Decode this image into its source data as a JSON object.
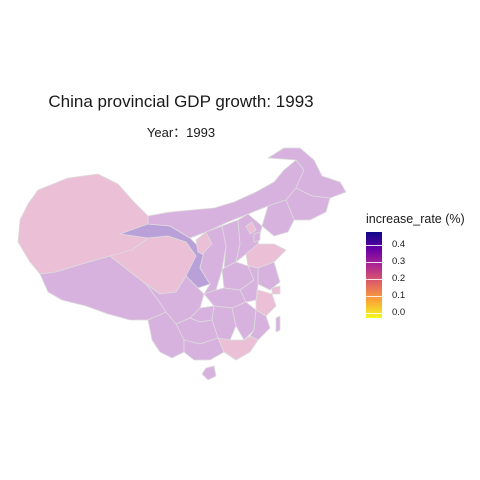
{
  "title": "China provincial GDP growth: 1993",
  "subtitle": "Year：1993",
  "legend": {
    "title": "increase_rate (%)",
    "ticks": [
      "0.4",
      "0.3",
      "0.2",
      "0.1",
      "0.0"
    ],
    "tick_values": [
      0.4,
      0.3,
      0.2,
      0.1,
      0.0
    ],
    "range": [
      0.0,
      0.45
    ],
    "palette": "plasma",
    "colors": [
      "#f0f921",
      "#fca636",
      "#e16462",
      "#b12a90",
      "#6a00a8",
      "#0d0887"
    ]
  },
  "map": {
    "fill_colors": {
      "light_pink": "#ebc0d6",
      "light_purple": "#d8b2df",
      "mid_purple": "#b9a0d8",
      "border": "#dcdcdc"
    }
  }
}
